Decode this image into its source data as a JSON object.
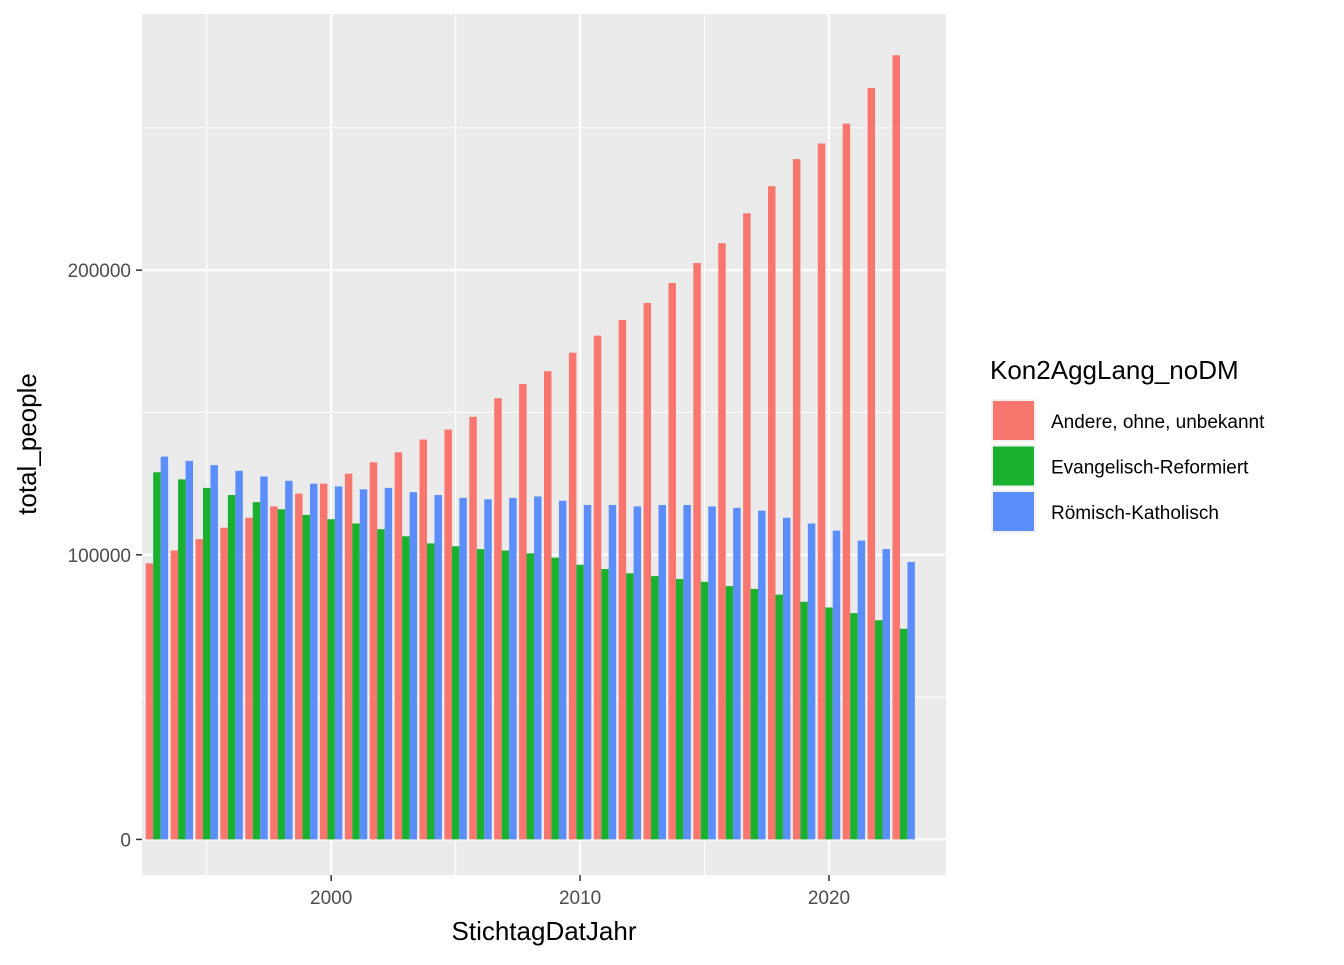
{
  "chart_data": {
    "type": "bar",
    "xlabel": "StichtagDatJahr",
    "ylabel": "total_people",
    "x_ticks": [
      2000,
      2010,
      2020
    ],
    "y_ticks": [
      0,
      100000,
      200000
    ],
    "x_tick_labels": [
      "2000",
      "2010",
      "2020"
    ],
    "y_tick_labels": [
      "0",
      "100000",
      "200000"
    ],
    "xlim": [
      1992.4,
      2024.7
    ],
    "ylim": [
      -12500,
      290000
    ],
    "grid": true,
    "legend_position": "right",
    "legend_title": "Kon2AggLang_noDM",
    "categories": [
      1993,
      1994,
      1995,
      1996,
      1997,
      1998,
      1999,
      2000,
      2001,
      2002,
      2003,
      2004,
      2005,
      2006,
      2007,
      2008,
      2009,
      2010,
      2011,
      2012,
      2013,
      2014,
      2015,
      2016,
      2017,
      2018,
      2019,
      2020,
      2021,
      2022,
      2023
    ],
    "series": [
      {
        "name": "Andere, ohne, unbekannt",
        "color": "#F8766D",
        "values": [
          97000,
          101500,
          105500,
          109500,
          113000,
          117000,
          121500,
          125000,
          128500,
          132500,
          136000,
          140500,
          144000,
          148500,
          155000,
          160000,
          164500,
          171000,
          177000,
          182500,
          188500,
          195500,
          202500,
          209500,
          220000,
          229500,
          239000,
          244500,
          251500,
          264000,
          275500
        ]
      },
      {
        "name": "Evangelisch-Reformiert",
        "color": "#1AB12F",
        "values": [
          129000,
          126500,
          123500,
          121000,
          118500,
          116000,
          114000,
          112500,
          111000,
          109000,
          106500,
          104000,
          103000,
          102000,
          101500,
          100500,
          99000,
          96500,
          95000,
          93500,
          92500,
          91500,
          90500,
          89000,
          88000,
          86000,
          83500,
          81500,
          79500,
          77000,
          74000
        ]
      },
      {
        "name": "Römisch-Katholisch",
        "color": "#5B8EFB",
        "values": [
          134500,
          133000,
          131500,
          129500,
          127500,
          126000,
          125000,
          124000,
          123000,
          123500,
          122000,
          121000,
          120000,
          119500,
          120000,
          120500,
          119000,
          117500,
          117500,
          117000,
          117500,
          117500,
          117000,
          116500,
          115500,
          113000,
          111000,
          108500,
          105000,
          102000,
          97500
        ]
      }
    ]
  },
  "colors": {
    "panel_background": "#EBEBEB",
    "grid_major": "#FFFFFF",
    "grid_minor": "#F7F7F7",
    "tick": "#333333"
  }
}
